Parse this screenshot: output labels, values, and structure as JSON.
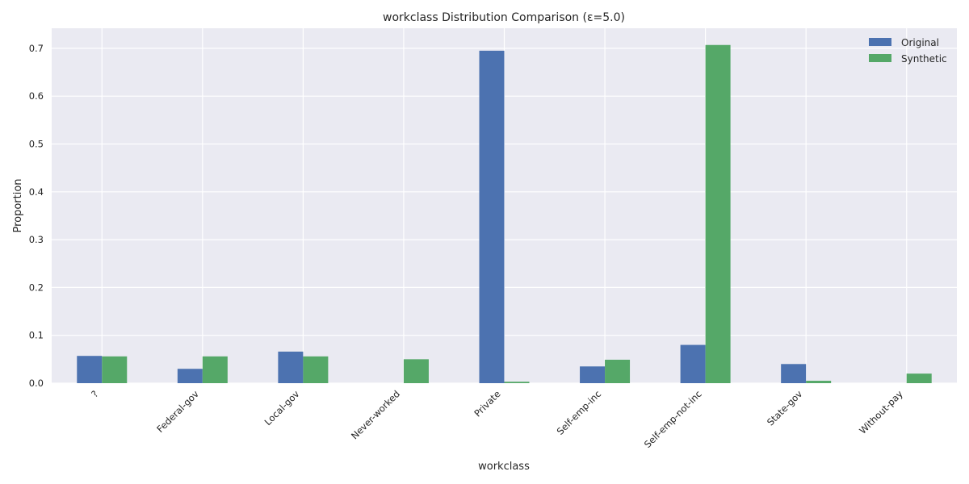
{
  "chart_data": {
    "type": "bar",
    "title": "workclass Distribution Comparison (ε=5.0)",
    "xlabel": "workclass",
    "ylabel": "Proportion",
    "categories": [
      "?",
      "Federal-gov",
      "Local-gov",
      "Never-worked",
      "Private",
      "Self-emp-inc",
      "Self-emp-not-inc",
      "State-gov",
      "Without-pay"
    ],
    "series": [
      {
        "name": "Original",
        "color": "#4c72b0",
        "values": [
          0.057,
          0.03,
          0.066,
          0.0,
          0.695,
          0.035,
          0.08,
          0.04,
          0.0
        ]
      },
      {
        "name": "Synthetic",
        "color": "#55a868",
        "values": [
          0.056,
          0.056,
          0.056,
          0.05,
          0.003,
          0.049,
          0.707,
          0.005,
          0.02
        ]
      }
    ],
    "yticks": [
      "0.0",
      "0.1",
      "0.2",
      "0.3",
      "0.4",
      "0.5",
      "0.6",
      "0.7"
    ],
    "ylim": [
      0,
      0.742
    ],
    "grid": true,
    "legend_position": "top-right",
    "background_color": "#eaeaf2",
    "grid_color": "#ffffff"
  }
}
